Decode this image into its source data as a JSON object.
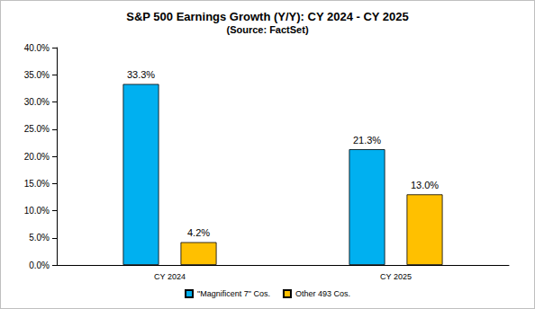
{
  "chart_data": {
    "type": "bar",
    "title": "S&P 500 Earnings Growth (Y/Y): CY 2024 - CY 2025",
    "subtitle": "(Source: FactSet)",
    "categories": [
      "CY 2024",
      "CY 2025"
    ],
    "series": [
      {
        "name": "\"Magnificent 7\" Cos.",
        "color": "#00b0f0",
        "values": [
          33.3,
          21.3
        ],
        "value_labels": [
          "33.3%",
          "21.3%"
        ]
      },
      {
        "name": "Other 493 Cos.",
        "color": "#ffc000",
        "values": [
          4.2,
          13.0
        ],
        "value_labels": [
          "4.2%",
          "13.0%"
        ]
      }
    ],
    "ylim": [
      0,
      40
    ],
    "yticks": [
      {
        "value": 0,
        "label": "0.0%"
      },
      {
        "value": 5,
        "label": "5.0%"
      },
      {
        "value": 10,
        "label": "10.0%"
      },
      {
        "value": 15,
        "label": "15.0%"
      },
      {
        "value": 20,
        "label": "20.0%"
      },
      {
        "value": 25,
        "label": "25.0%"
      },
      {
        "value": 30,
        "label": "30.0%"
      },
      {
        "value": 35,
        "label": "35.0%"
      },
      {
        "value": 40,
        "label": "40.0%"
      }
    ],
    "grid": false,
    "legend": "bottom",
    "data_labels": true
  }
}
